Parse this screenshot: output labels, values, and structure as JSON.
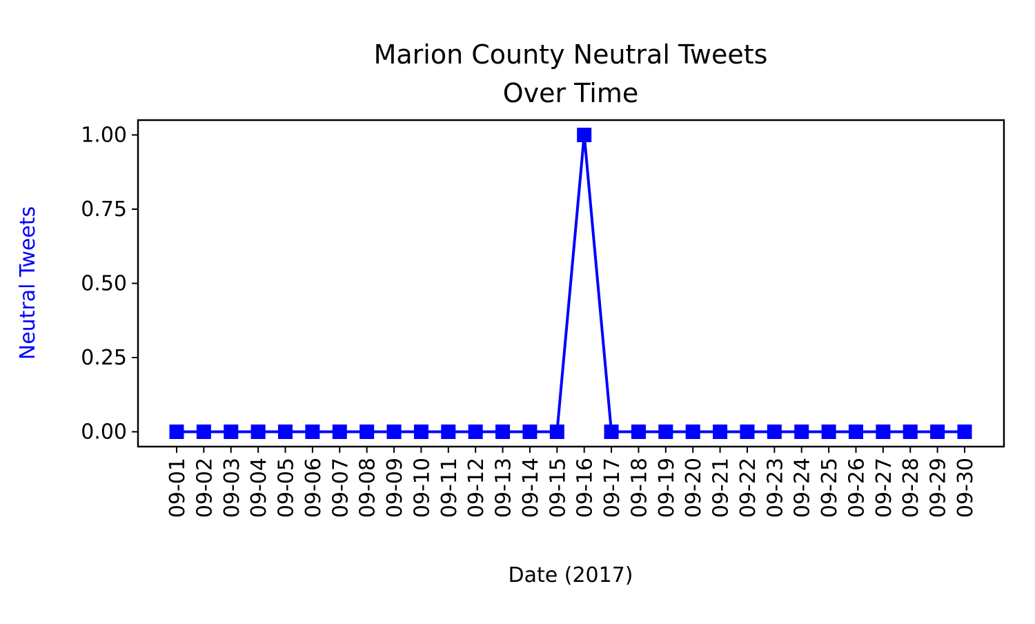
{
  "chart_data": {
    "type": "line",
    "title_lines": [
      "Marion County Neutral Tweets",
      "Over Time"
    ],
    "xlabel": "Date (2017)",
    "ylabel": "Neutral Tweets",
    "categories": [
      "09-01",
      "09-02",
      "09-03",
      "09-04",
      "09-05",
      "09-06",
      "09-07",
      "09-08",
      "09-09",
      "09-10",
      "09-11",
      "09-12",
      "09-13",
      "09-14",
      "09-15",
      "09-16",
      "09-17",
      "09-18",
      "09-19",
      "09-20",
      "09-21",
      "09-22",
      "09-23",
      "09-24",
      "09-25",
      "09-26",
      "09-27",
      "09-28",
      "09-29",
      "09-30"
    ],
    "values": [
      0,
      0,
      0,
      0,
      0,
      0,
      0,
      0,
      0,
      0,
      0,
      0,
      0,
      0,
      0,
      1,
      0,
      0,
      0,
      0,
      0,
      0,
      0,
      0,
      0,
      0,
      0,
      0,
      0,
      0
    ],
    "yticks": [
      0.0,
      0.25,
      0.5,
      0.75,
      1.0
    ],
    "ytick_labels": [
      "0.00",
      "0.25",
      "0.50",
      "0.75",
      "1.00"
    ],
    "ylim": [
      -0.05,
      1.05
    ],
    "marker": "square",
    "grid": false,
    "colors": {
      "series": "#0000ff",
      "ylabel": "#0000ff",
      "axes": "#000000",
      "text": "#000000"
    }
  }
}
